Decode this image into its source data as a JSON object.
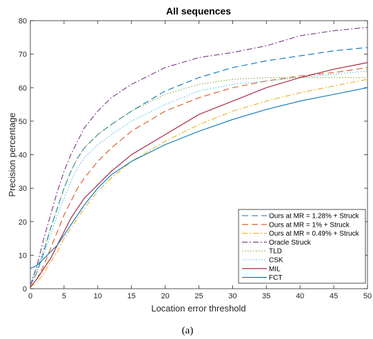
{
  "chart_data": {
    "type": "line",
    "title": "All sequences",
    "xlabel": "Location error threshold",
    "ylabel": "Precision percentage",
    "xlim": [
      0,
      50
    ],
    "ylim": [
      0,
      80
    ],
    "xticks": [
      0,
      5,
      10,
      15,
      20,
      25,
      30,
      35,
      40,
      45,
      50
    ],
    "yticks": [
      0,
      10,
      20,
      30,
      40,
      50,
      60,
      70,
      80
    ],
    "grid": false,
    "legend_position": "bottom-right",
    "x": [
      0,
      1,
      2,
      3,
      4,
      5,
      6,
      7,
      8,
      10,
      12,
      15,
      20,
      25,
      30,
      35,
      40,
      45,
      50
    ],
    "series": [
      {
        "name": "Ours at MR = 1.28% + Struck",
        "color": "#0072BD",
        "dash": "9,5",
        "values": [
          1,
          5,
          11,
          18,
          24,
          30,
          35,
          39,
          42,
          46,
          49,
          53,
          59,
          63,
          66,
          68,
          69.5,
          71,
          72
        ]
      },
      {
        "name": "Ours at MR = 1% + Struck",
        "color": "#D95319",
        "dash": "9,5",
        "values": [
          0.5,
          3,
          7,
          12,
          17,
          22,
          26,
          30,
          33,
          38,
          42,
          47,
          53,
          57,
          60,
          62,
          63.5,
          64.5,
          66
        ]
      },
      {
        "name": "Ours at MR = 0.49% + Struck",
        "color": "#EDB120",
        "dash": "8,3,2,3",
        "values": [
          0.5,
          2,
          4.5,
          8,
          11,
          15,
          18,
          21,
          24,
          29,
          33,
          38,
          44,
          49,
          53,
          56,
          58.5,
          60.5,
          62.5
        ]
      },
      {
        "name": "Oracle Struck",
        "color": "#7E2F8E",
        "dash": "8,3,2,3",
        "values": [
          1,
          7,
          15,
          22,
          29,
          35,
          40,
          44,
          48,
          53,
          57,
          61,
          66,
          69,
          70.5,
          72.5,
          75.5,
          77,
          78
        ]
      },
      {
        "name": "TLD",
        "color": "#77AC30",
        "dash": "1.5,2.5",
        "values": [
          1,
          6,
          12,
          18,
          24,
          30,
          35,
          39,
          42,
          46,
          49,
          53,
          58,
          61,
          62.5,
          63,
          63,
          63,
          63
        ]
      },
      {
        "name": "CSK",
        "color": "#4DBEEE",
        "dash": "1.5,2.5",
        "values": [
          1,
          5,
          10,
          16,
          22,
          27,
          32,
          36,
          39,
          43,
          46,
          50,
          55,
          59,
          61,
          62,
          63,
          64,
          65
        ]
      },
      {
        "name": "MIL",
        "color": "#A2142F",
        "dash": "",
        "values": [
          0.5,
          3,
          6,
          9,
          13,
          17,
          21,
          24,
          27,
          31,
          35,
          40,
          46,
          52,
          56,
          60,
          63,
          65.5,
          67.5
        ]
      },
      {
        "name": "FCT",
        "color": "#0072BD",
        "dash": "",
        "values": [
          6,
          7,
          9,
          11,
          13,
          16,
          19,
          22,
          25,
          30,
          34,
          38,
          43,
          47,
          50.5,
          53.5,
          56,
          58,
          60
        ]
      }
    ]
  },
  "caption": "(a)"
}
